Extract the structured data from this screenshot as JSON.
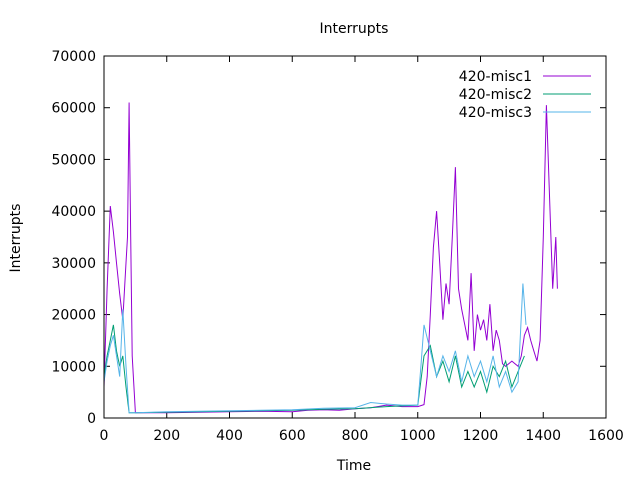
{
  "chart_data": {
    "type": "line",
    "title": "Interrupts",
    "xlabel": "Time",
    "ylabel": "Interrupts",
    "xlim": [
      0,
      1600
    ],
    "ylim": [
      0,
      70000
    ],
    "xticks": [
      0,
      200,
      400,
      600,
      800,
      1000,
      1200,
      1400,
      1600
    ],
    "yticks": [
      0,
      10000,
      20000,
      30000,
      40000,
      50000,
      60000,
      70000
    ],
    "legend_position": "top-right",
    "grid": false,
    "series": [
      {
        "name": "420-misc1",
        "color": "#9400d3",
        "x": [
          0,
          10,
          20,
          30,
          40,
          50,
          60,
          70,
          75,
          80,
          85,
          90,
          100,
          110,
          200,
          300,
          400,
          500,
          600,
          650,
          700,
          750,
          800,
          850,
          900,
          950,
          1000,
          1010,
          1020,
          1030,
          1040,
          1050,
          1060,
          1070,
          1080,
          1090,
          1100,
          1110,
          1120,
          1130,
          1140,
          1150,
          1160,
          1170,
          1180,
          1190,
          1200,
          1210,
          1220,
          1230,
          1240,
          1250,
          1260,
          1270,
          1280,
          1290,
          1300,
          1310,
          1320,
          1330,
          1340,
          1350,
          1360,
          1370,
          1380,
          1390,
          1400,
          1410,
          1420,
          1430,
          1440,
          1445
        ],
        "y": [
          6000,
          25000,
          41000,
          36000,
          30000,
          24000,
          19000,
          30000,
          35000,
          61000,
          35000,
          12000,
          1000,
          1000,
          1000,
          1100,
          1200,
          1300,
          1200,
          1500,
          1600,
          1500,
          1800,
          2000,
          2500,
          2200,
          2200,
          2400,
          2600,
          8000,
          20000,
          33000,
          40000,
          30000,
          19000,
          26000,
          22000,
          35000,
          48500,
          25000,
          21000,
          18000,
          15000,
          28000,
          13000,
          20000,
          17000,
          19000,
          15000,
          22000,
          13000,
          17000,
          15000,
          10500,
          10000,
          10500,
          11000,
          10500,
          10000,
          12000,
          16000,
          17500,
          15000,
          13000,
          11000,
          15000,
          35000,
          60500,
          43000,
          25000,
          35000,
          25000
        ]
      },
      {
        "name": "420-misc2",
        "color": "#009e73",
        "x": [
          0,
          10,
          20,
          30,
          40,
          50,
          60,
          70,
          80,
          90,
          100,
          200,
          300,
          400,
          500,
          600,
          700,
          800,
          900,
          1000,
          1020,
          1040,
          1060,
          1080,
          1100,
          1120,
          1140,
          1160,
          1180,
          1200,
          1220,
          1240,
          1260,
          1280,
          1300,
          1320,
          1340
        ],
        "y": [
          8000,
          12000,
          15000,
          18000,
          13000,
          10000,
          12000,
          6000,
          1000,
          1000,
          1000,
          1100,
          1200,
          1300,
          1400,
          1500,
          1700,
          1800,
          2200,
          2500,
          12000,
          14000,
          8000,
          11000,
          7000,
          12000,
          6000,
          9000,
          6000,
          9000,
          5000,
          10000,
          8000,
          11000,
          6000,
          9000,
          12000
        ]
      },
      {
        "name": "420-misc3",
        "color": "#56b4e9",
        "x": [
          0,
          10,
          20,
          30,
          40,
          50,
          60,
          70,
          80,
          90,
          100,
          200,
          300,
          400,
          500,
          600,
          700,
          800,
          850,
          900,
          950,
          1000,
          1010,
          1020,
          1040,
          1060,
          1080,
          1100,
          1120,
          1140,
          1160,
          1180,
          1200,
          1220,
          1240,
          1260,
          1280,
          1300,
          1320,
          1335,
          1345
        ],
        "y": [
          7000,
          11000,
          14000,
          16000,
          12000,
          8000,
          21000,
          10000,
          1000,
          1000,
          1000,
          1200,
          1300,
          1400,
          1500,
          1600,
          1900,
          2000,
          3000,
          2700,
          2500,
          2500,
          10000,
          18000,
          13000,
          8000,
          12000,
          9000,
          13000,
          7000,
          12000,
          8000,
          11000,
          7000,
          12000,
          6000,
          9000,
          5000,
          7000,
          26000,
          18000
        ]
      }
    ]
  }
}
